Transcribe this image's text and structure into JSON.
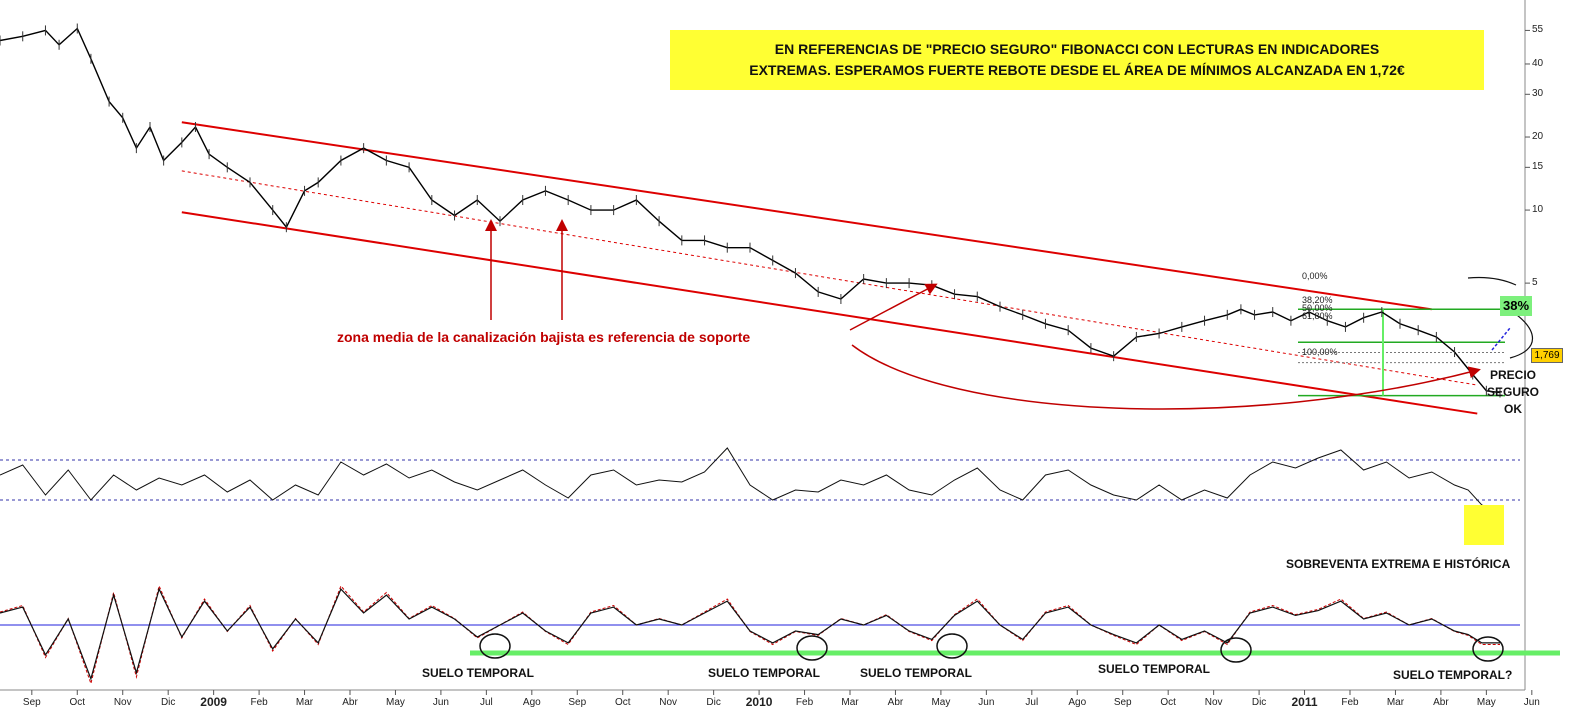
{
  "headline": {
    "line1": "EN REFERENCIAS DE \"PRECIO SEGURO\" FIBONACCI CON LECTURAS EN INDICADORES",
    "line2": "EXTREMAS. ESPERAMOS FUERTE REBOTE DESDE EL ÁREA DE MÍNIMOS ALCANZADA EN 1,72€"
  },
  "annotations": {
    "support_note": "zona media de la canalización bajista es referencia de soporte",
    "precio_seguro": [
      "PRECIO",
      "SEGURO",
      "OK"
    ],
    "oversold": "SOBREVENTA EXTREMA E HISTÓRICA",
    "suelo": [
      "SUELO TEMPORAL",
      "SUELO TEMPORAL",
      "SUELO TEMPORAL",
      "SUELO TEMPORAL",
      "SUELO TEMPORAL?"
    ],
    "last_price": "1,769",
    "retracement_badge": "38%"
  },
  "fibonacci_levels": [
    "0,00%",
    "38,20%",
    "50,00%",
    "61,80%",
    "100,00%"
  ],
  "colors": {
    "banner": "#ffff33",
    "channel": "#dd0000",
    "price": "#000000",
    "signal": "#cc0000",
    "suelo_line": "#66ee66",
    "guide_dotted": "#3333aa"
  },
  "chart_data": {
    "type": "line",
    "scale": "log",
    "y_ticks": [
      55,
      40,
      30,
      20,
      15,
      10,
      5
    ],
    "ylim": [
      1.5,
      70
    ],
    "x_ticks": [
      "Sep",
      "Oct",
      "Nov",
      "Dic",
      "2009",
      "Feb",
      "Mar",
      "Abr",
      "May",
      "Jun",
      "Jul",
      "Ago",
      "Sep",
      "Oct",
      "Nov",
      "Dic",
      "2010",
      "Feb",
      "Mar",
      "Abr",
      "May",
      "Jun",
      "Jul",
      "Ago",
      "Sep",
      "Oct",
      "Nov",
      "Dic",
      "2011",
      "Feb",
      "Mar",
      "Abr",
      "May",
      "Jun"
    ],
    "year_ticks": [
      "2009",
      "2010",
      "2011"
    ],
    "price_series": {
      "x": [
        0,
        0.5,
        1,
        1.3,
        1.7,
        2,
        2.4,
        2.7,
        3,
        3.3,
        3.6,
        4,
        4.3,
        4.6,
        5,
        5.5,
        6,
        6.3,
        6.7,
        7,
        7.5,
        8,
        8.5,
        9,
        9.5,
        10,
        10.5,
        11,
        11.5,
        12,
        12.5,
        13,
        13.5,
        14,
        14.5,
        15,
        15.5,
        16,
        16.5,
        17,
        17.5,
        18,
        18.5,
        19,
        19.5,
        20,
        20.5,
        21,
        21.5,
        22,
        22.5,
        23,
        23.5,
        24,
        24.5,
        25,
        25.5,
        26,
        26.5,
        27,
        27.3,
        27.6,
        28,
        28.4,
        28.8,
        29.2,
        29.6,
        30,
        30.4,
        30.8,
        31.2,
        31.6,
        32,
        32.4,
        32.7,
        33
      ],
      "y": [
        50,
        52,
        55,
        48,
        56,
        42,
        28,
        24,
        18,
        22,
        16,
        19,
        22,
        17,
        15,
        13,
        10,
        8.5,
        12,
        13,
        16,
        18,
        16,
        15,
        11,
        9.5,
        11,
        9,
        11,
        12,
        11,
        10,
        10,
        11,
        9,
        7.5,
        7.5,
        7,
        7,
        6.2,
        5.5,
        4.6,
        4.3,
        5.2,
        5.0,
        5.0,
        4.9,
        4.5,
        4.4,
        4.0,
        3.7,
        3.4,
        3.2,
        2.7,
        2.5,
        3.0,
        3.1,
        3.3,
        3.5,
        3.7,
        3.9,
        3.7,
        3.8,
        3.5,
        3.8,
        3.5,
        3.3,
        3.6,
        3.8,
        3.4,
        3.2,
        3.0,
        2.6,
        2.1,
        1.8,
        1.77
      ]
    },
    "channel": {
      "upper": {
        "x": [
          4,
          31.5
        ],
        "y": [
          23,
          3.9
        ]
      },
      "lower": {
        "x": [
          4,
          32.5
        ],
        "y": [
          9.8,
          1.45
        ]
      },
      "middle": {
        "x": [
          4,
          32.5
        ],
        "y": [
          14.5,
          1.9
        ]
      }
    },
    "fibonacci": {
      "high": 3.9,
      "low": 1.72,
      "levels": [
        0,
        38.2,
        50,
        61.8,
        100
      ]
    },
    "rsi_series": {
      "x": [
        0,
        0.5,
        1,
        1.5,
        2,
        2.5,
        3,
        3.5,
        4,
        4.5,
        5,
        5.5,
        6,
        6.5,
        7,
        7.5,
        8,
        8.5,
        9,
        9.5,
        10,
        10.5,
        11,
        11.5,
        12,
        12.5,
        13,
        13.5,
        14,
        14.5,
        15,
        15.5,
        16,
        16.5,
        17,
        17.5,
        18,
        18.5,
        19,
        19.5,
        20,
        20.5,
        21,
        21.5,
        22,
        22.5,
        23,
        23.5,
        24,
        24.5,
        25,
        25.5,
        26,
        26.5,
        27,
        27.5,
        28,
        28.5,
        29,
        29.5,
        30,
        30.5,
        31,
        31.5,
        32,
        32.3,
        32.6,
        33
      ],
      "y": [
        55,
        65,
        35,
        60,
        30,
        55,
        40,
        52,
        45,
        55,
        38,
        50,
        30,
        45,
        35,
        68,
        55,
        66,
        52,
        60,
        48,
        40,
        50,
        60,
        45,
        32,
        55,
        60,
        45,
        50,
        48,
        58,
        82,
        45,
        30,
        40,
        38,
        50,
        45,
        55,
        40,
        35,
        50,
        62,
        40,
        30,
        55,
        60,
        45,
        35,
        30,
        45,
        30,
        40,
        32,
        55,
        68,
        62,
        72,
        80,
        60,
        68,
        52,
        58,
        45,
        40,
        25,
        18
      ]
    },
    "rsi_bands": [
      70,
      30
    ],
    "osc_series": {
      "x": [
        0,
        0.5,
        1,
        1.5,
        2,
        2.5,
        3,
        3.5,
        4,
        4.5,
        5,
        5.5,
        6,
        6.5,
        7,
        7.5,
        8,
        8.5,
        9,
        9.5,
        10,
        10.5,
        11,
        11.5,
        12,
        12.5,
        13,
        13.5,
        14,
        14.5,
        15,
        15.5,
        16,
        16.5,
        17,
        17.5,
        18,
        18.5,
        19,
        19.5,
        20,
        20.5,
        21,
        21.5,
        22,
        22.5,
        23,
        23.5,
        24,
        24.5,
        25,
        25.5,
        26,
        26.5,
        27,
        27.5,
        28,
        28.5,
        29,
        29.5,
        30,
        30.5,
        31,
        31.5,
        32,
        32.3,
        32.6,
        33
      ],
      "y": [
        10,
        15,
        -25,
        5,
        -45,
        25,
        -40,
        30,
        -10,
        20,
        -5,
        15,
        -20,
        5,
        -15,
        30,
        10,
        25,
        5,
        15,
        5,
        -10,
        0,
        10,
        -5,
        -15,
        10,
        15,
        0,
        5,
        0,
        10,
        20,
        -5,
        -15,
        -5,
        -8,
        5,
        0,
        8,
        -5,
        -12,
        8,
        20,
        0,
        -12,
        10,
        15,
        0,
        -8,
        -15,
        0,
        -12,
        -5,
        -15,
        10,
        15,
        8,
        12,
        20,
        5,
        10,
        0,
        5,
        -5,
        -8,
        -15,
        -15
      ]
    },
    "osc_zero": 0
  }
}
